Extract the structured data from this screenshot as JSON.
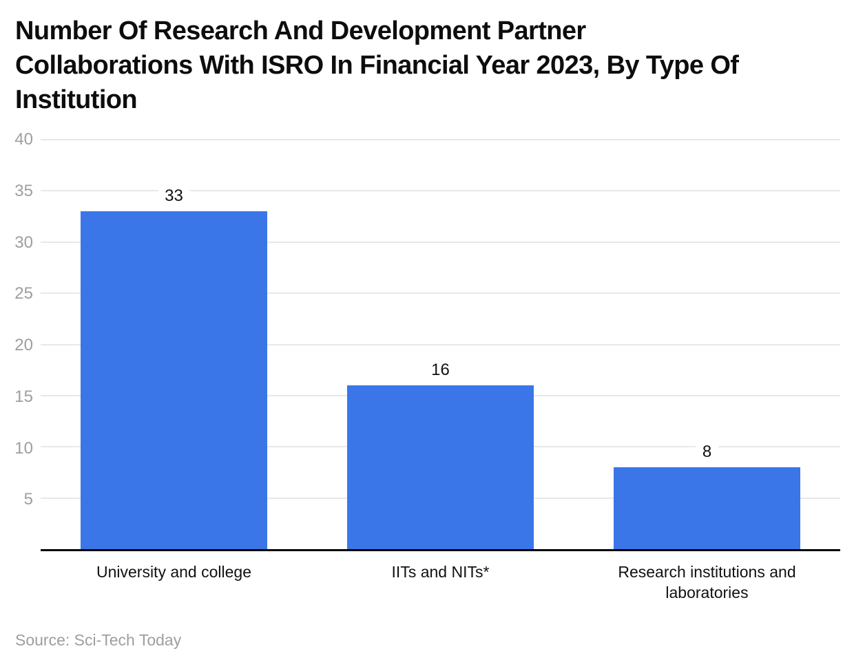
{
  "chart_data": {
    "type": "bar",
    "title": "Number Of Research And Development Partner Collaborations With ISRO In Financial Year 2023, By Type Of Institution",
    "title_lines": [
      "Number Of Research And Development Partner",
      "Collaborations With ISRO In Financial Year 2023, By Type Of",
      "Institution"
    ],
    "categories": [
      "University and college",
      "IITs and NITs*",
      "Research institutions and laboratories"
    ],
    "values": [
      33,
      16,
      8
    ],
    "value_labels": [
      "33",
      "16",
      "8"
    ],
    "xlabel": "",
    "ylabel": "",
    "ylim": [
      0,
      40
    ],
    "yticks": [
      5,
      10,
      15,
      20,
      25,
      30,
      35,
      40
    ],
    "ytick_labels": [
      "5",
      "10",
      "15",
      "20",
      "25",
      "30",
      "35",
      "40"
    ],
    "grid": true,
    "legend": "none",
    "source": "Source: Sci-Tech Today"
  },
  "colors": {
    "bar": "#3b76e8",
    "gridline": "#e8e8e8",
    "axis_line": "#000000",
    "tick_label": "#9e9e9e",
    "title_text": "#0d0d0d",
    "value_text": "#111111",
    "source_text": "#9e9e9e",
    "background": "#ffffff"
  }
}
